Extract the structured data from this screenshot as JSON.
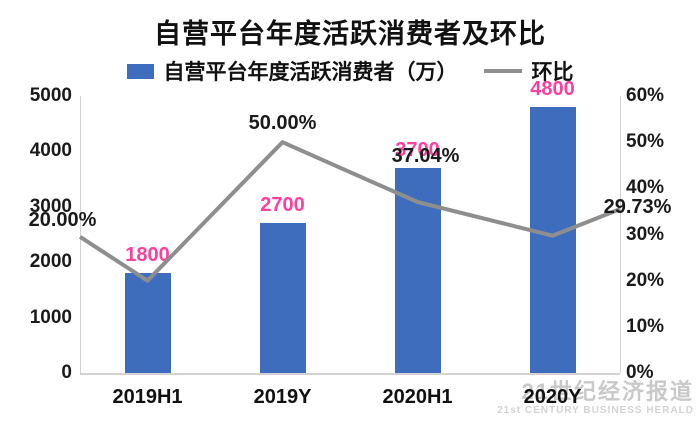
{
  "title": "自营平台年度活跃消费者及环比",
  "legend": [
    {
      "label": "自营平台年度活跃消费者（万）",
      "type": "bar"
    },
    {
      "label": "环比",
      "type": "line"
    }
  ],
  "watermark": {
    "cn": "21世纪经济报道",
    "en": "21st CENTURY BUSINESS HERALD"
  },
  "colors": {
    "bar": "#3E6DBE",
    "line": "#8E8E8E",
    "value_label": "#FF3E9D",
    "pct_label": "#1A1A1A"
  },
  "chart_data": {
    "type": "bar+line",
    "title": "自营平台年度活跃消费者及环比",
    "categories": [
      "2019H1",
      "2019Y",
      "2020H1",
      "2020Y"
    ],
    "series": [
      {
        "name": "自营平台年度活跃消费者（万）",
        "type": "bar",
        "axis": "left",
        "values": [
          1800,
          2700,
          3700,
          4800
        ],
        "labels": [
          "1800",
          "2700",
          "3700",
          "4800"
        ]
      },
      {
        "name": "环比",
        "type": "line",
        "axis": "right",
        "values": [
          20.0,
          50.0,
          37.04,
          29.73
        ],
        "labels": [
          "20.00%",
          "50.00%",
          "37.04%",
          "29.73%"
        ]
      }
    ],
    "left_axis": {
      "min": 0,
      "max": 5000,
      "ticks": [
        "5000",
        "4000",
        "3000",
        "2000",
        "1000",
        "0"
      ]
    },
    "right_axis": {
      "min": 0,
      "max": 60,
      "ticks": [
        "60%",
        "50%",
        "40%",
        "30%",
        "20%",
        "10%",
        "0%"
      ]
    },
    "legend_position": "top",
    "grid": false
  }
}
